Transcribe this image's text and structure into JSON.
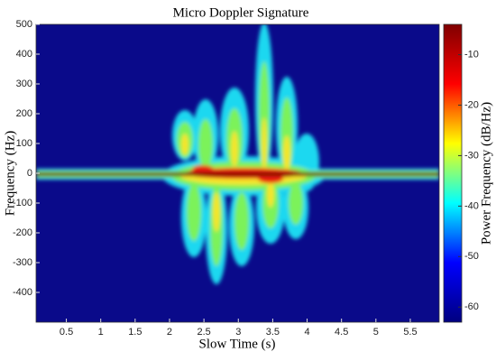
{
  "chart_data": {
    "type": "spectrogram",
    "title": "Micro Doppler Signature",
    "xlabel": "Slow Time (s)",
    "ylabel": "Frequency (Hz)",
    "colorbar_label": "Power Frequency (dB/Hz)",
    "xlim": [
      0.06,
      5.92
    ],
    "xticks": [
      0.5,
      1,
      1.5,
      2,
      2.5,
      3,
      3.5,
      4,
      4.5,
      5,
      5.5
    ],
    "ylim": [
      -500,
      500
    ],
    "yticks": [
      -400,
      -300,
      -200,
      -100,
      0,
      100,
      200,
      300,
      400,
      500
    ],
    "clim": [
      -63,
      -4
    ],
    "cticks": [
      -60,
      -50,
      -40,
      -30,
      -20,
      -10
    ],
    "colormap": [
      "#00007f",
      "#0000ff",
      "#00ffff",
      "#ffff00",
      "#ff0000",
      "#7f0000"
    ]
  }
}
